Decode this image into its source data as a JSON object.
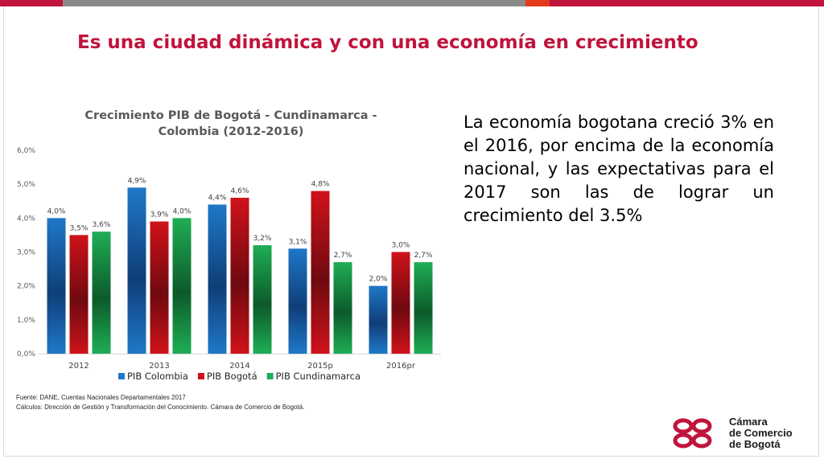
{
  "slide": {
    "title": "Es una ciudad dinámica y con una economía en crecimiento",
    "topbar_colors": [
      "#c0143c",
      "#8a8a8a",
      "#e43a1c",
      "#c0143c"
    ],
    "accent_color": "#c0143c"
  },
  "description": "La economía bogotana creció 3% en el 2016, por encima de la economía nacional, y las expectativas para el 2017 son las de lograr un crecimiento del 3.5%",
  "source": {
    "fuente": "Fuente: DANE, Cuentas Nacionales Departamentales 2017",
    "calculos": "Cálculos: Dirección de Gestión y Transformación del Conocimiento. Cámara de Comercio de Bogotá."
  },
  "logo": {
    "lines": [
      "Cámara",
      "de Comercio",
      "de Bogotá"
    ],
    "mark_color": "#c0143c"
  },
  "chart_data": {
    "type": "bar",
    "title_lines": [
      "Crecimiento PIB de Bogotá - Cundinamarca -",
      "Colombia (2012-2016)"
    ],
    "categories": [
      "2012",
      "2013",
      "2014",
      "2015p",
      "2016pr"
    ],
    "series": [
      {
        "name": "PIB Colombia",
        "values": [
          4.0,
          4.9,
          4.4,
          3.1,
          2.0
        ],
        "labels": [
          "4,0%",
          "4,9%",
          "4,4%",
          "3,1%",
          "2,0%"
        ],
        "color": "#1f78c8",
        "dark": "#0f3e78"
      },
      {
        "name": "PIB Bogotá",
        "values": [
          3.5,
          3.9,
          4.6,
          4.8,
          3.0
        ],
        "labels": [
          "3,5%",
          "3,9%",
          "4,6%",
          "4,8%",
          "3,0%"
        ],
        "color": "#d0121a",
        "dark": "#6e0a10"
      },
      {
        "name": "PIB Cundinamarca",
        "values": [
          3.6,
          4.0,
          3.2,
          2.7,
          2.7
        ],
        "labels": [
          "3,6%",
          "4,0%",
          "3,2%",
          "2,7%",
          "2,7%"
        ],
        "color": "#1fae55",
        "dark": "#0c5a2a"
      }
    ],
    "ylim": [
      0,
      6
    ],
    "yticks": [
      0,
      1,
      2,
      3,
      4,
      5,
      6
    ],
    "ytick_labels": [
      "0,0%",
      "1,0%",
      "2,0%",
      "3,0%",
      "4,0%",
      "5,0%",
      "6,0%"
    ],
    "xlabel": "",
    "ylabel": "",
    "grid": false,
    "legend_position": "bottom"
  }
}
